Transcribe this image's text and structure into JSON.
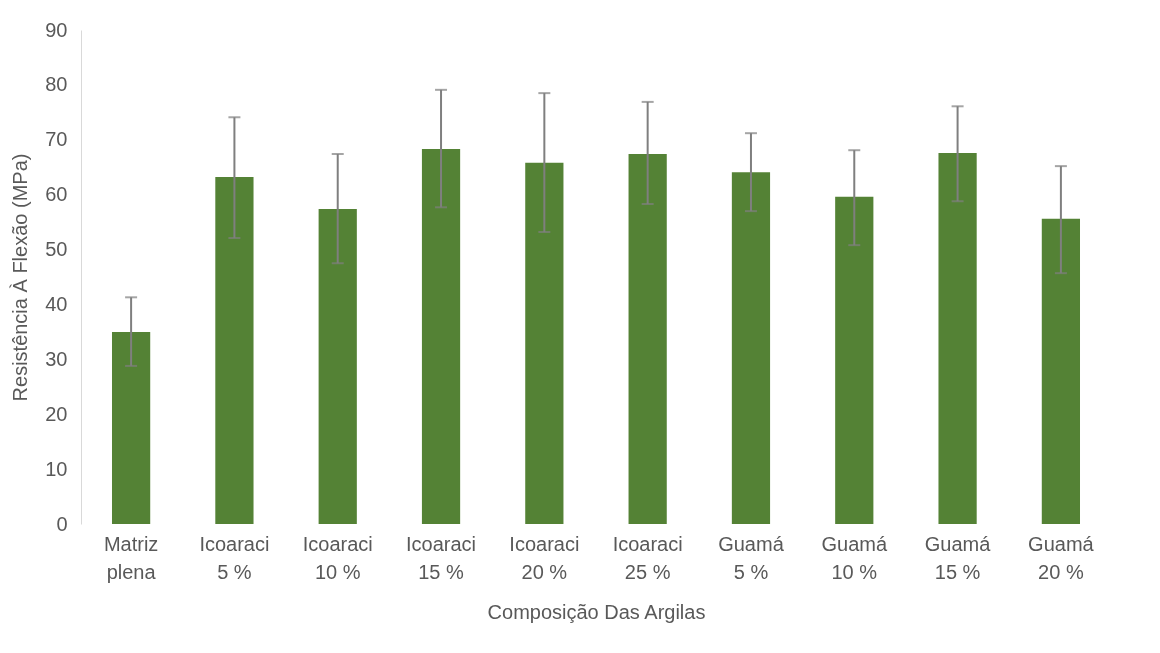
{
  "chart_data": {
    "type": "bar",
    "xlabel": "Composição Das Argilas",
    "ylabel": "Resistência À Flexão (MPa)",
    "categories": [
      "Matriz plena",
      "Icoaraci 5 %",
      "Icoaraci 10 %",
      "Icoaraci 15 %",
      "Icoaraci 20 %",
      "Icoaraci 25 %",
      "Guamá 5 %",
      "Guamá 10 %",
      "Guamá 15 %",
      "Guamá 20 %"
    ],
    "values": [
      35.0,
      63.2,
      57.4,
      68.3,
      65.8,
      67.4,
      64.1,
      59.6,
      67.6,
      55.6
    ],
    "errors": [
      [
        28.8,
        41.3
      ],
      [
        52.1,
        74.1
      ],
      [
        47.5,
        67.4
      ],
      [
        57.7,
        79.1
      ],
      [
        53.2,
        78.5
      ],
      [
        58.3,
        76.9
      ],
      [
        57.0,
        71.2
      ],
      [
        50.8,
        68.1
      ],
      [
        58.8,
        76.1
      ],
      [
        45.7,
        65.2
      ]
    ],
    "color": "#548235",
    "ylim": [
      0,
      90
    ],
    "yticks": [
      0,
      10,
      20,
      30,
      40,
      50,
      60,
      70,
      80,
      90
    ],
    "grid": false
  }
}
